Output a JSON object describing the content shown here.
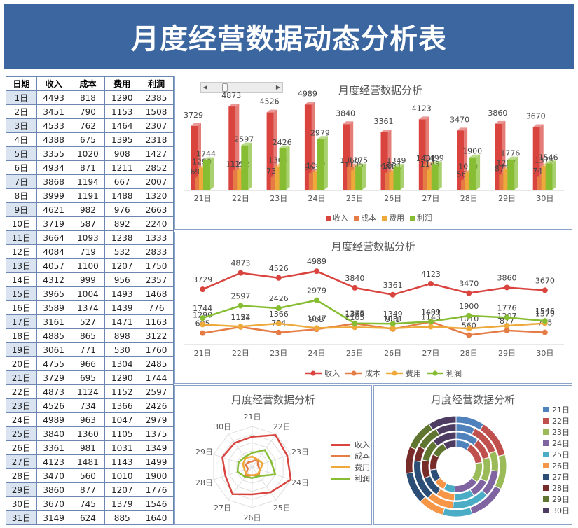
{
  "header": {
    "title": "月度经营数据动态分析表"
  },
  "table": {
    "columns": [
      "日期",
      "收入",
      "成本",
      "费用",
      "利润"
    ],
    "rows": [
      [
        "1日",
        "4493",
        "818",
        "1290",
        "2385"
      ],
      [
        "2日",
        "3451",
        "790",
        "1153",
        "1508"
      ],
      [
        "3日",
        "4533",
        "762",
        "1464",
        "2307"
      ],
      [
        "4日",
        "4388",
        "675",
        "1395",
        "2318"
      ],
      [
        "5日",
        "3355",
        "1020",
        "908",
        "1427"
      ],
      [
        "6日",
        "4934",
        "871",
        "1211",
        "2852"
      ],
      [
        "7日",
        "3868",
        "1194",
        "667",
        "2007"
      ],
      [
        "8日",
        "3999",
        "1191",
        "1488",
        "1320"
      ],
      [
        "9日",
        "4621",
        "982",
        "976",
        "2663"
      ],
      [
        "10日",
        "3719",
        "587",
        "892",
        "2240"
      ],
      [
        "11日",
        "3664",
        "1093",
        "1238",
        "1333"
      ],
      [
        "12日",
        "4084",
        "719",
        "532",
        "2833"
      ],
      [
        "13日",
        "4057",
        "1100",
        "1207",
        "1750"
      ],
      [
        "14日",
        "4312",
        "999",
        "956",
        "2357"
      ],
      [
        "15日",
        "3965",
        "1004",
        "1493",
        "1468"
      ],
      [
        "16日",
        "3589",
        "1374",
        "1439",
        "776"
      ],
      [
        "17日",
        "3161",
        "527",
        "1471",
        "1163"
      ],
      [
        "18日",
        "4885",
        "865",
        "898",
        "3122"
      ],
      [
        "19日",
        "3061",
        "771",
        "530",
        "1760"
      ],
      [
        "20日",
        "4755",
        "966",
        "1304",
        "2485"
      ],
      [
        "21日",
        "3729",
        "695",
        "1290",
        "1744"
      ],
      [
        "22日",
        "4873",
        "1124",
        "1152",
        "2597"
      ],
      [
        "23日",
        "4526",
        "734",
        "1366",
        "2426"
      ],
      [
        "24日",
        "4989",
        "963",
        "1047",
        "2979"
      ],
      [
        "25日",
        "3840",
        "1360",
        "1105",
        "1375"
      ],
      [
        "26日",
        "3361",
        "981",
        "1031",
        "1349"
      ],
      [
        "27日",
        "4123",
        "1481",
        "1143",
        "1499"
      ],
      [
        "28日",
        "3470",
        "560",
        "1010",
        "1900"
      ],
      [
        "29日",
        "3860",
        "877",
        "1207",
        "1776"
      ],
      [
        "30日",
        "3670",
        "745",
        "1379",
        "1546"
      ],
      [
        "31日",
        "3149",
        "624",
        "885",
        "1640"
      ]
    ]
  },
  "colors": {
    "income": "#d9443f",
    "cost": "#e67c45",
    "expense": "#eea93b",
    "profit": "#86bd33",
    "banner": "#3b66a0"
  },
  "chart_data": [
    {
      "type": "bar",
      "title": "月度经营数据分析",
      "categories": [
        "21日",
        "22日",
        "23日",
        "24日",
        "25日",
        "26日",
        "27日",
        "28日",
        "29日",
        "30日"
      ],
      "series": [
        {
          "name": "收入",
          "values": [
            3729,
            4873,
            4526,
            4989,
            3840,
            3361,
            4123,
            3470,
            3860,
            3670
          ]
        },
        {
          "name": "成本",
          "values": [
            695,
            1124,
            734,
            963,
            1360,
            981,
            1481,
            560,
            877,
            745
          ]
        },
        {
          "name": "费用",
          "values": [
            1290,
            1152,
            1366,
            1047,
            1105,
            1031,
            1143,
            1010,
            1207,
            1379
          ]
        },
        {
          "name": "利润",
          "values": [
            1744,
            2597,
            2426,
            2979,
            1375,
            1349,
            1499,
            1900,
            1776,
            1546
          ]
        }
      ],
      "ylim": [
        0,
        5000
      ]
    },
    {
      "type": "line",
      "title": "月度经营数据分析",
      "categories": [
        "21日",
        "22日",
        "23日",
        "24日",
        "25日",
        "26日",
        "27日",
        "28日",
        "29日",
        "30日"
      ],
      "series": [
        {
          "name": "收入",
          "values": [
            3729,
            4873,
            4526,
            4989,
            3840,
            3361,
            4123,
            3470,
            3860,
            3670
          ]
        },
        {
          "name": "成本",
          "values": [
            695,
            1124,
            734,
            963,
            1360,
            981,
            1481,
            560,
            877,
            745
          ]
        },
        {
          "name": "费用",
          "values": [
            1290,
            1152,
            1366,
            1047,
            1105,
            1031,
            1143,
            1010,
            1207,
            1379
          ]
        },
        {
          "name": "利润",
          "values": [
            1744,
            2597,
            2426,
            2979,
            1375,
            1349,
            1499,
            1900,
            1776,
            1546
          ]
        }
      ],
      "ylim": [
        0,
        5000
      ]
    },
    {
      "type": "radar",
      "title": "月度经营数据分析",
      "categories": [
        "21日",
        "22日",
        "23日",
        "24日",
        "25日",
        "26日",
        "27日",
        "28日",
        "29日",
        "30日"
      ],
      "series": [
        {
          "name": "收入",
          "values": [
            3729,
            4873,
            4526,
            4989,
            3840,
            3361,
            4123,
            3470,
            3860,
            3670
          ]
        },
        {
          "name": "成本",
          "values": [
            695,
            1124,
            734,
            963,
            1360,
            981,
            1481,
            560,
            877,
            745
          ]
        },
        {
          "name": "费用",
          "values": [
            1290,
            1152,
            1366,
            1047,
            1105,
            1031,
            1143,
            1010,
            1207,
            1379
          ]
        },
        {
          "name": "利润",
          "values": [
            1744,
            2597,
            2426,
            2979,
            1375,
            1349,
            1499,
            1900,
            1776,
            1546
          ]
        }
      ],
      "rmax": 5000
    },
    {
      "type": "doughnut",
      "title": "月度经营数据分析",
      "categories": [
        "21日",
        "22日",
        "23日",
        "24日",
        "25日",
        "26日",
        "27日",
        "28日",
        "29日",
        "30日"
      ],
      "slice_colors": [
        "#4f81bd",
        "#c0504d",
        "#9bbb59",
        "#8064a2",
        "#4bacc6",
        "#f79646",
        "#2c4d75",
        "#772c2a",
        "#5f7530",
        "#4d3b62"
      ],
      "rings": [
        {
          "name": "收入",
          "values": [
            3729,
            4873,
            4526,
            4989,
            3840,
            3361,
            4123,
            3470,
            3860,
            3670
          ]
        },
        {
          "name": "成本",
          "values": [
            695,
            1124,
            734,
            963,
            1360,
            981,
            1481,
            560,
            877,
            745
          ]
        },
        {
          "name": "费用",
          "values": [
            1290,
            1152,
            1366,
            1047,
            1105,
            1031,
            1143,
            1010,
            1207,
            1379
          ]
        },
        {
          "name": "利润",
          "values": [
            1744,
            2597,
            2426,
            2979,
            1375,
            1349,
            1499,
            1900,
            1776,
            1546
          ]
        }
      ]
    }
  ]
}
